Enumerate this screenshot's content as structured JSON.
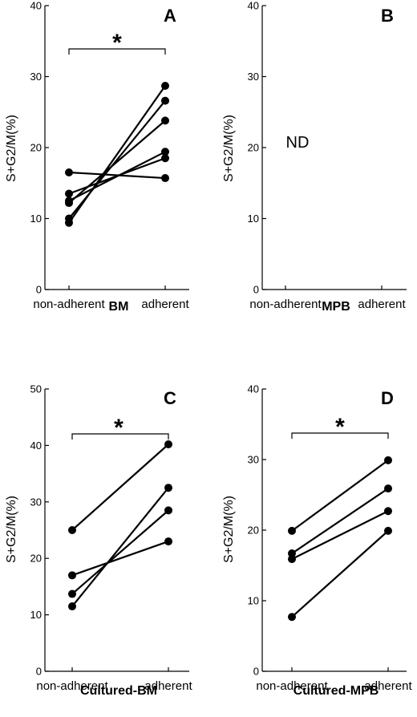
{
  "chart_data": [
    {
      "type": "line",
      "panel_label": "A",
      "title": "BM",
      "ylabel": "S+G2/M(%)",
      "categories": [
        "non-adherent",
        "adherent"
      ],
      "ylim": [
        0,
        40
      ],
      "yticks": [
        0,
        10,
        20,
        30,
        40
      ],
      "significance": "*",
      "series": [
        {
          "values": [
            16.5,
            15.7
          ]
        },
        {
          "values": [
            13.5,
            18.5
          ]
        },
        {
          "values": [
            12.5,
            19.4
          ]
        },
        {
          "values": [
            12.2,
            23.8
          ]
        },
        {
          "values": [
            10.0,
            26.6
          ]
        },
        {
          "values": [
            9.4,
            28.7
          ]
        }
      ]
    },
    {
      "type": "line",
      "panel_label": "B",
      "title": "MPB",
      "ylabel": "S+G2/M(%)",
      "categories": [
        "non-adherent",
        "adherent"
      ],
      "ylim": [
        0,
        40
      ],
      "yticks": [
        0,
        10,
        20,
        30,
        40
      ],
      "annotation": "ND",
      "series": []
    },
    {
      "type": "line",
      "panel_label": "C",
      "title": "Cultured-BM",
      "ylabel": "S+G2/M(%)",
      "categories": [
        "non-adherent",
        "adherent"
      ],
      "ylim": [
        0,
        50
      ],
      "yticks": [
        0,
        10,
        20,
        30,
        40,
        50
      ],
      "significance": "*",
      "series": [
        {
          "values": [
            25.0,
            40.2
          ]
        },
        {
          "values": [
            17.0,
            23.0
          ]
        },
        {
          "values": [
            13.7,
            28.5
          ]
        },
        {
          "values": [
            11.5,
            32.5
          ]
        }
      ]
    },
    {
      "type": "line",
      "panel_label": "D",
      "title": "Cultured-MPB",
      "ylabel": "S+G2/M(%)",
      "categories": [
        "non-adherent",
        "adherent"
      ],
      "ylim": [
        0,
        40
      ],
      "yticks": [
        0,
        10,
        20,
        30,
        40
      ],
      "significance": "*",
      "series": [
        {
          "values": [
            19.9,
            29.9
          ]
        },
        {
          "values": [
            16.7,
            25.9
          ]
        },
        {
          "values": [
            15.9,
            22.7
          ]
        },
        {
          "values": [
            7.7,
            19.9
          ]
        }
      ]
    }
  ]
}
